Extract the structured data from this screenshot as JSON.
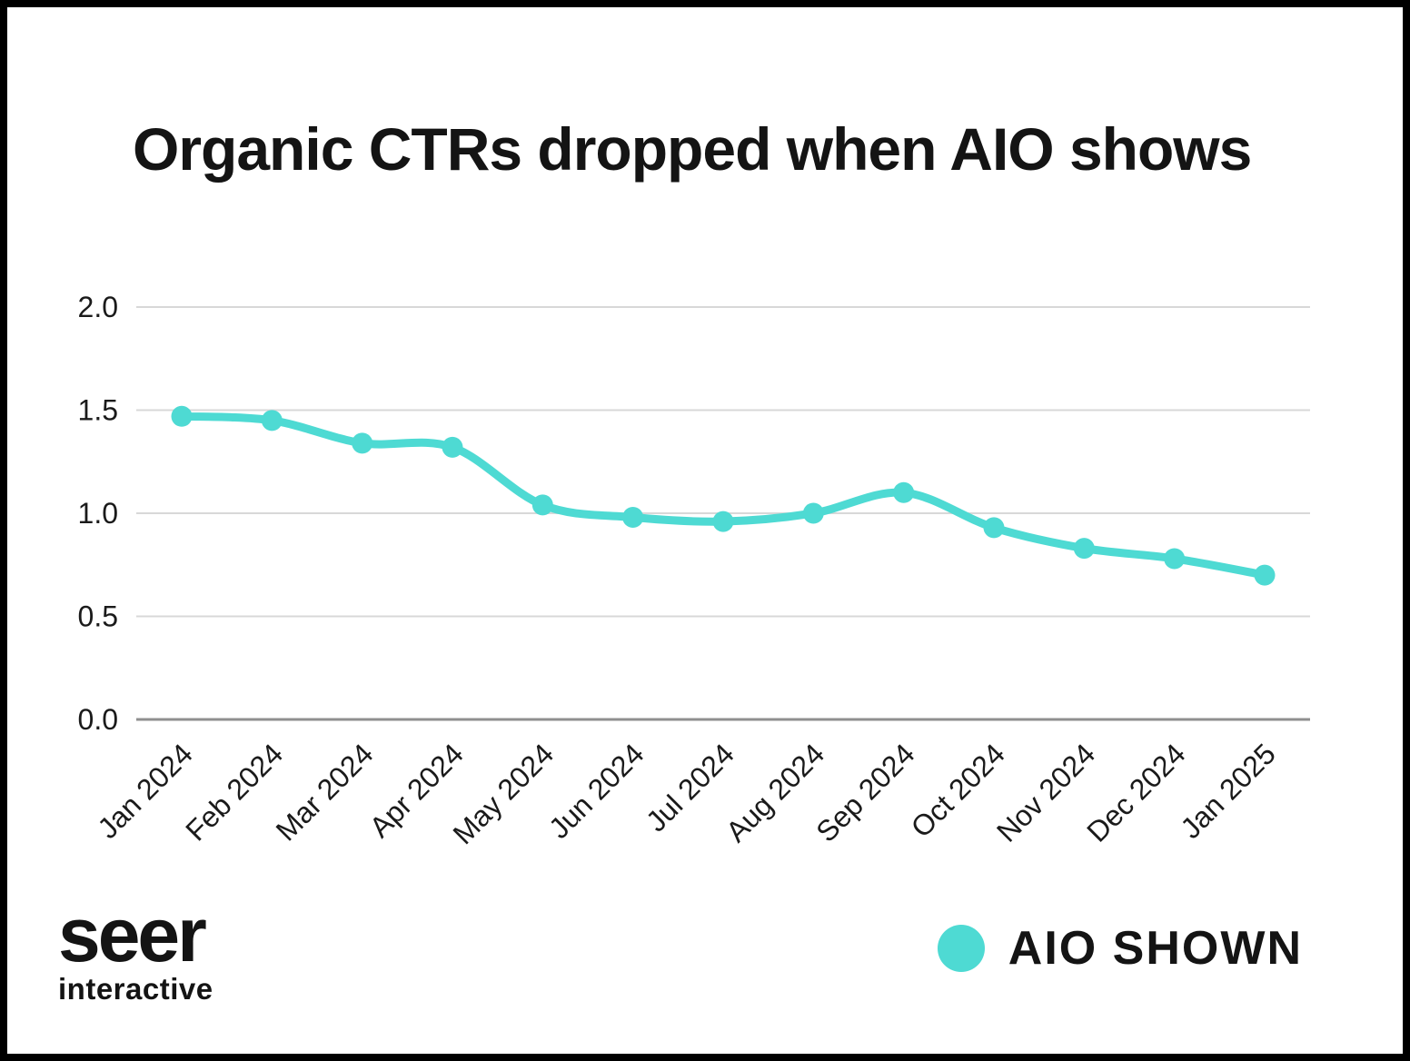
{
  "title": "Organic CTRs dropped when AIO shows",
  "chart_data": {
    "type": "line",
    "title": "Organic CTRs dropped when AIO shows",
    "categories": [
      "Jan 2024",
      "Feb 2024",
      "Mar 2024",
      "Apr 2024",
      "May 2024",
      "Jun 2024",
      "Jul 2024",
      "Aug 2024",
      "Sep 2024",
      "Oct 2024",
      "Nov 2024",
      "Dec 2024",
      "Jan 2025"
    ],
    "series": [
      {
        "name": "AIO SHOWN",
        "color": "#4EDAD3",
        "values": [
          1.47,
          1.45,
          1.34,
          1.32,
          1.04,
          0.98,
          0.96,
          1.0,
          1.1,
          0.93,
          0.83,
          0.78,
          0.7
        ]
      }
    ],
    "xlabel": "",
    "ylabel": "",
    "ylim": [
      0,
      2
    ],
    "yticks": [
      0,
      0.5,
      1,
      1.5,
      2
    ],
    "ytick_labels": [
      "0.0",
      "0.5",
      "1.0",
      "1.5",
      "2.0"
    ],
    "grid": true,
    "x_label_rotation_deg": 45,
    "legend_position": "bottom-right"
  },
  "legend": {
    "label": "AIO SHOWN"
  },
  "branding": {
    "logo_primary": "seer",
    "logo_secondary": "interactive"
  },
  "colors": {
    "accent_teal": "#4EDAD3",
    "gridline": "#d8d8d8",
    "axis_line": "#8f8f8f",
    "text": "#1a1a1a",
    "title_text": "#141414",
    "frame_border": "#000000",
    "background": "#ffffff"
  }
}
